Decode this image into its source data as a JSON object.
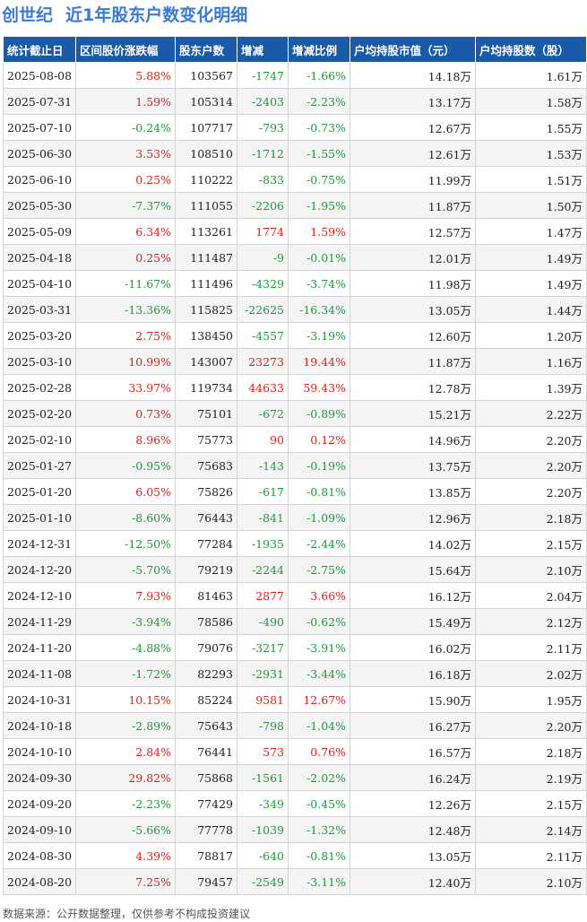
{
  "header": {
    "stock_name": "创世纪",
    "title": "近1年股东户数变化明细"
  },
  "table": {
    "columns": [
      "统计截止日",
      "区间股价涨跌幅",
      "股东户数",
      "增减",
      "增减比例",
      "户均持股市值（元）",
      "户均持股数（股）"
    ],
    "rows": [
      [
        "2025-08-08",
        "5.88%",
        "103567",
        "-1747",
        "-1.66%",
        "14.18万",
        "1.61万"
      ],
      [
        "2025-07-31",
        "1.59%",
        "105314",
        "-2403",
        "-2.23%",
        "13.17万",
        "1.58万"
      ],
      [
        "2025-07-10",
        "-0.24%",
        "107717",
        "-793",
        "-0.73%",
        "12.67万",
        "1.55万"
      ],
      [
        "2025-06-30",
        "3.53%",
        "108510",
        "-1712",
        "-1.55%",
        "12.61万",
        "1.53万"
      ],
      [
        "2025-06-10",
        "0.25%",
        "110222",
        "-833",
        "-0.75%",
        "11.99万",
        "1.51万"
      ],
      [
        "2025-05-30",
        "-7.37%",
        "111055",
        "-2206",
        "-1.95%",
        "11.87万",
        "1.50万"
      ],
      [
        "2025-05-09",
        "6.34%",
        "113261",
        "1774",
        "1.59%",
        "12.57万",
        "1.47万"
      ],
      [
        "2025-04-18",
        "0.25%",
        "111487",
        "-9",
        "-0.01%",
        "12.01万",
        "1.49万"
      ],
      [
        "2025-04-10",
        "-11.67%",
        "111496",
        "-4329",
        "-3.74%",
        "11.98万",
        "1.49万"
      ],
      [
        "2025-03-31",
        "-13.36%",
        "115825",
        "-22625",
        "-16.34%",
        "13.05万",
        "1.44万"
      ],
      [
        "2025-03-20",
        "2.75%",
        "138450",
        "-4557",
        "-3.19%",
        "12.60万",
        "1.20万"
      ],
      [
        "2025-03-10",
        "10.99%",
        "143007",
        "23273",
        "19.44%",
        "11.87万",
        "1.16万"
      ],
      [
        "2025-02-28",
        "33.97%",
        "119734",
        "44633",
        "59.43%",
        "12.78万",
        "1.39万"
      ],
      [
        "2025-02-20",
        "0.73%",
        "75101",
        "-672",
        "-0.89%",
        "15.21万",
        "2.22万"
      ],
      [
        "2025-02-10",
        "8.96%",
        "75773",
        "90",
        "0.12%",
        "14.96万",
        "2.20万"
      ],
      [
        "2025-01-27",
        "-0.95%",
        "75683",
        "-143",
        "-0.19%",
        "13.75万",
        "2.20万"
      ],
      [
        "2025-01-20",
        "6.05%",
        "75826",
        "-617",
        "-0.81%",
        "13.85万",
        "2.20万"
      ],
      [
        "2025-01-10",
        "-8.60%",
        "76443",
        "-841",
        "-1.09%",
        "12.96万",
        "2.18万"
      ],
      [
        "2024-12-31",
        "-12.50%",
        "77284",
        "-1935",
        "-2.44%",
        "14.02万",
        "2.15万"
      ],
      [
        "2024-12-20",
        "-5.70%",
        "79219",
        "-2244",
        "-2.75%",
        "15.64万",
        "2.10万"
      ],
      [
        "2024-12-10",
        "7.93%",
        "81463",
        "2877",
        "3.66%",
        "16.12万",
        "2.04万"
      ],
      [
        "2024-11-29",
        "-3.94%",
        "78586",
        "-490",
        "-0.62%",
        "15.49万",
        "2.12万"
      ],
      [
        "2024-11-20",
        "-4.88%",
        "79076",
        "-3217",
        "-3.91%",
        "16.02万",
        "2.11万"
      ],
      [
        "2024-11-08",
        "-1.72%",
        "82293",
        "-2931",
        "-3.44%",
        "16.18万",
        "2.02万"
      ],
      [
        "2024-10-31",
        "10.15%",
        "85224",
        "9581",
        "12.67%",
        "15.90万",
        "1.95万"
      ],
      [
        "2024-10-18",
        "-2.89%",
        "75643",
        "-798",
        "-1.04%",
        "16.27万",
        "2.20万"
      ],
      [
        "2024-10-10",
        "2.84%",
        "76441",
        "573",
        "0.76%",
        "16.57万",
        "2.18万"
      ],
      [
        "2024-09-30",
        "29.82%",
        "75868",
        "-1561",
        "-2.02%",
        "16.24万",
        "2.19万"
      ],
      [
        "2024-09-20",
        "-2.23%",
        "77429",
        "-349",
        "-0.45%",
        "12.26万",
        "2.15万"
      ],
      [
        "2024-09-10",
        "-5.66%",
        "77778",
        "-1039",
        "-1.32%",
        "12.48万",
        "2.14万"
      ],
      [
        "2024-08-30",
        "4.39%",
        "78817",
        "-640",
        "-0.81%",
        "13.05万",
        "2.11万"
      ],
      [
        "2024-08-20",
        "7.25%",
        "79457",
        "-2549",
        "-3.11%",
        "12.40万",
        "2.10万"
      ]
    ]
  },
  "footer": {
    "source": "数据来源：公开数据整理，仅供参考不构成投资建议"
  },
  "colors": {
    "header_bg": "#1a5aa6",
    "up": "#e0201b",
    "down": "#1e9a3a",
    "title": "#3a7bd5"
  }
}
